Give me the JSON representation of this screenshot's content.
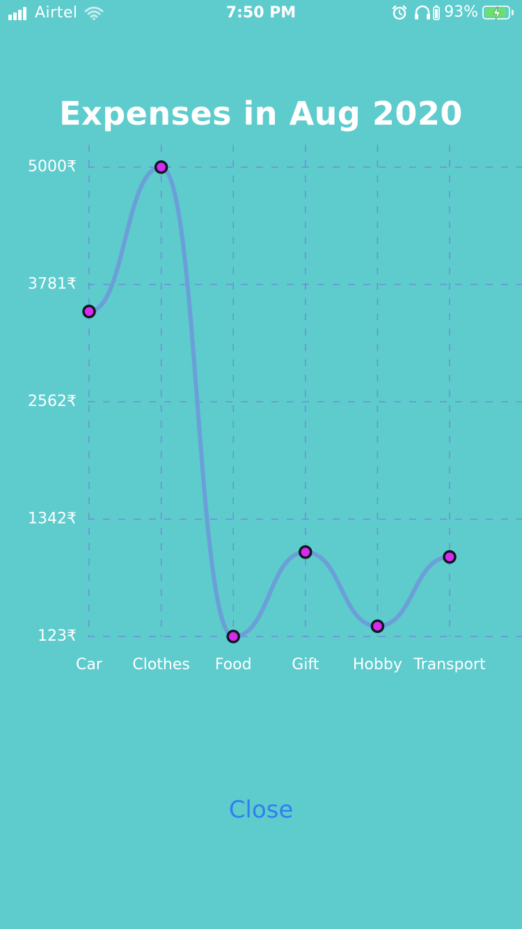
{
  "status_bar": {
    "carrier": "Airtel",
    "time": "7:50 PM",
    "battery_percent": "93%",
    "battery_level": 0.93,
    "icons": [
      "signal-icon",
      "wifi-icon",
      "alarm-icon",
      "headphones-icon",
      "battery-icon",
      "charging-icon"
    ]
  },
  "colors": {
    "background": "#5ecbcd",
    "line": "#6b9fd8",
    "point_fill": "#d62cf0",
    "grid": "#6e8fd6",
    "close_text": "#2f7ff0"
  },
  "chart_data": {
    "type": "line",
    "title": "Expenses in Aug 2020",
    "categories": [
      "Car",
      "Clothes",
      "Food",
      "Gift",
      "Hobby",
      "Transport"
    ],
    "values": [
      3500,
      5000,
      123,
      1000,
      230,
      950
    ],
    "y_ticks": [
      "123₹",
      "1342₹",
      "2562₹",
      "3781₹",
      "5000₹"
    ],
    "y_tick_values": [
      123,
      1342,
      2562,
      3781,
      5000
    ],
    "ylim": [
      123,
      5000
    ],
    "grid": true,
    "smooth": true,
    "xlabel": "",
    "ylabel": ""
  },
  "close_label": "Close"
}
